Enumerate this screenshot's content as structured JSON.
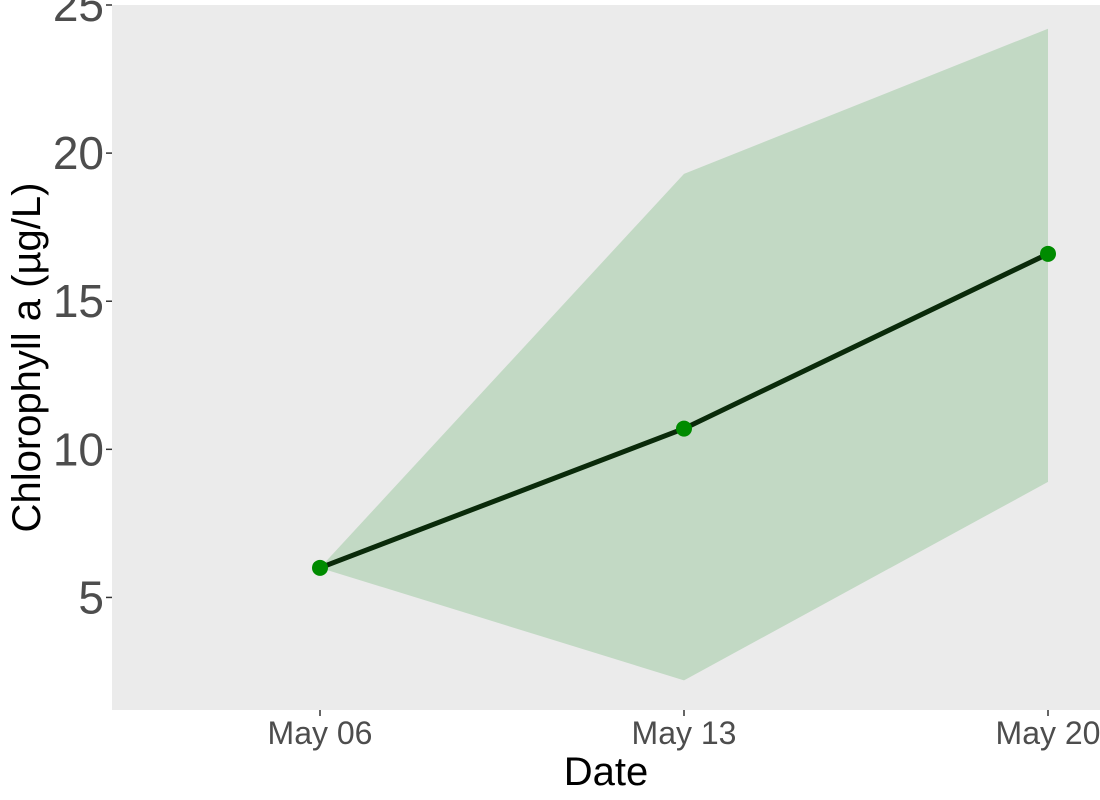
{
  "chart_data": {
    "type": "line",
    "title": "",
    "xlabel": "Date",
    "ylabel": "Chlorophyll a (µg/L)",
    "x": [
      "May 06",
      "May 13",
      "May 20"
    ],
    "x_ticks": [
      "May 06",
      "May 13",
      "May 20"
    ],
    "xlim": [
      "May 02",
      "May 21"
    ],
    "ylim": [
      1.2,
      25
    ],
    "y_ticks": [
      5,
      10,
      15,
      20,
      25
    ],
    "grid": false,
    "legend": "none",
    "series": [
      {
        "values": [
          6.0,
          10.7,
          16.6
        ],
        "lower": [
          6.0,
          2.2,
          8.9
        ],
        "upper": [
          6.0,
          19.3,
          24.2
        ]
      }
    ],
    "colors": {
      "panel_background": "#ebebeb",
      "ribbon": "#c2d9c4",
      "line": "#0a2a0a",
      "points": "#008b00",
      "tick_text": "#4d4d4d"
    }
  }
}
